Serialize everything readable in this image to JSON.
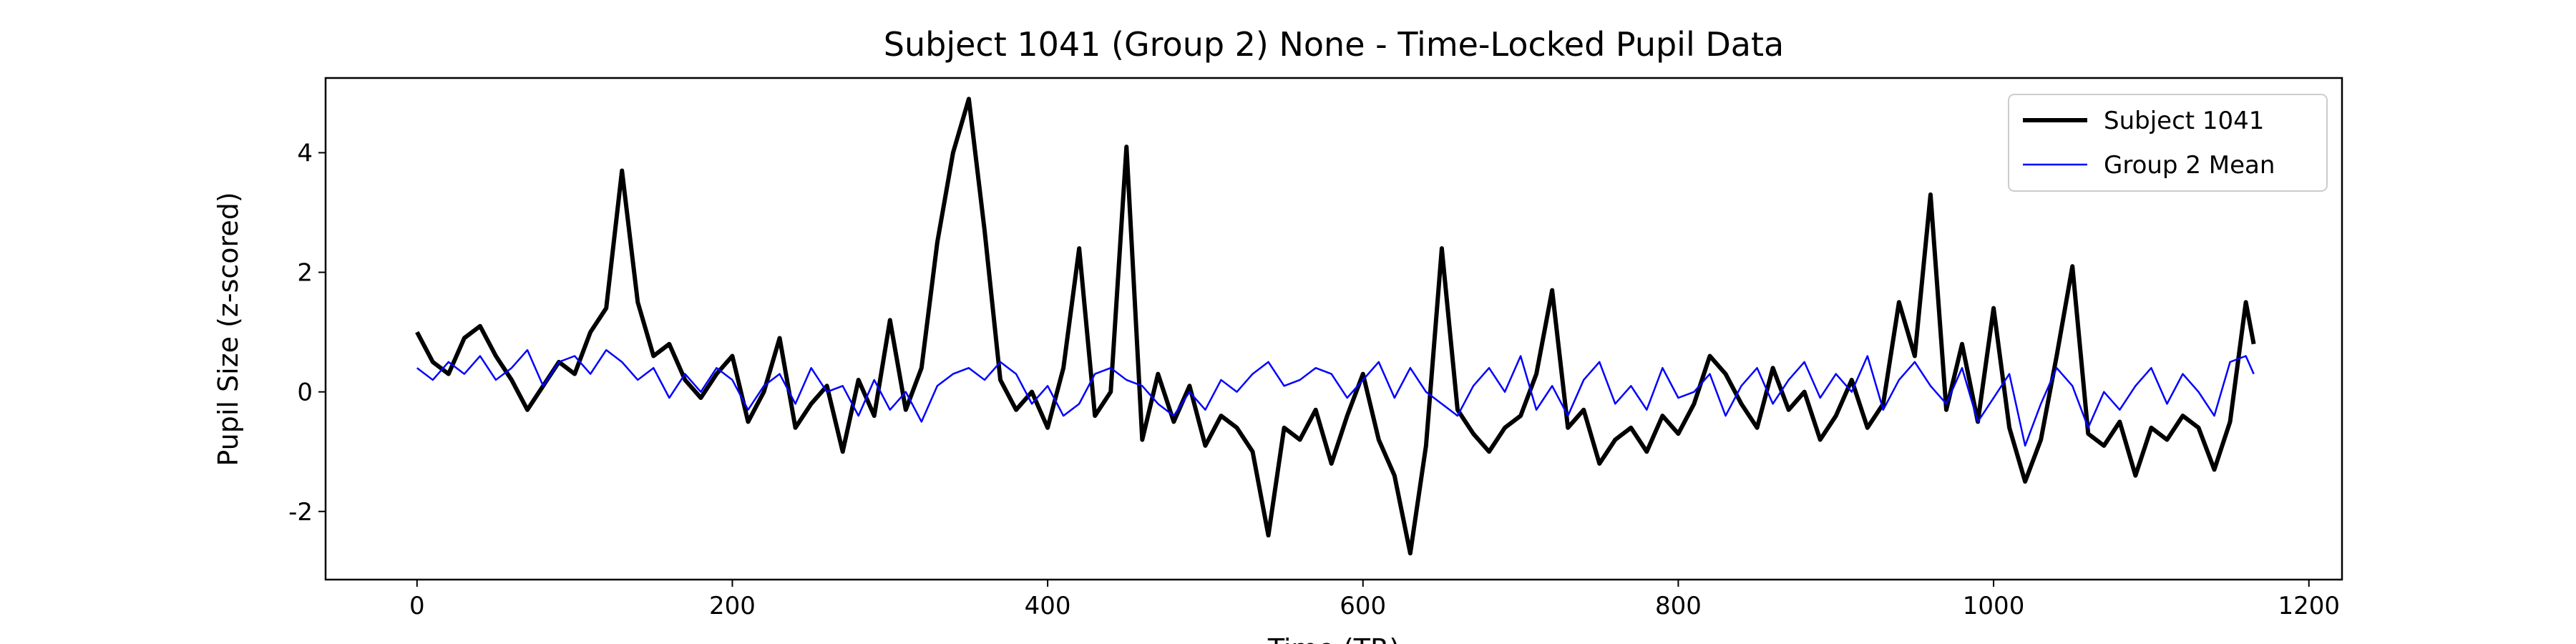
{
  "chart_data": {
    "type": "line",
    "title": "Subject 1041 (Group 2) None - Time-Locked Pupil Data",
    "x_label": "Time (TR)",
    "y_label": "Pupil Size (z-scored)",
    "x": [
      0,
      10,
      20,
      30,
      40,
      50,
      60,
      70,
      80,
      90,
      100,
      110,
      120,
      130,
      140,
      150,
      160,
      170,
      180,
      190,
      200,
      210,
      220,
      230,
      240,
      250,
      260,
      270,
      280,
      290,
      300,
      310,
      320,
      330,
      340,
      350,
      360,
      370,
      380,
      390,
      400,
      410,
      420,
      430,
      440,
      450,
      460,
      470,
      480,
      490,
      500,
      510,
      520,
      530,
      540,
      550,
      560,
      570,
      580,
      590,
      600,
      610,
      620,
      630,
      640,
      650,
      660,
      670,
      680,
      690,
      700,
      710,
      720,
      730,
      740,
      750,
      760,
      770,
      780,
      790,
      800,
      810,
      820,
      830,
      840,
      850,
      860,
      870,
      880,
      890,
      900,
      910,
      920,
      930,
      940,
      950,
      960,
      970,
      980,
      990,
      1000,
      1010,
      1020,
      1030,
      1040,
      1050,
      1060,
      1070,
      1080,
      1090,
      1100,
      1110,
      1120,
      1130,
      1140,
      1150,
      1160,
      1165
    ],
    "series": [
      {
        "name": "Subject 1041",
        "color": "#000000",
        "width": 6,
        "values": [
          1.0,
          0.5,
          0.3,
          0.9,
          1.1,
          0.6,
          0.2,
          -0.3,
          0.1,
          0.5,
          0.3,
          1.0,
          1.4,
          3.7,
          1.5,
          0.6,
          0.8,
          0.2,
          -0.1,
          0.3,
          0.6,
          -0.5,
          0.0,
          0.9,
          -0.6,
          -0.2,
          0.1,
          -1.0,
          0.2,
          -0.4,
          1.2,
          -0.3,
          0.4,
          2.5,
          4.0,
          4.9,
          2.7,
          0.2,
          -0.3,
          0.0,
          -0.6,
          0.4,
          2.4,
          -0.4,
          0.0,
          4.1,
          -0.8,
          0.3,
          -0.5,
          0.1,
          -0.9,
          -0.4,
          -0.6,
          -1.0,
          -2.4,
          -0.6,
          -0.8,
          -0.3,
          -1.2,
          -0.4,
          0.3,
          -0.8,
          -1.4,
          -2.7,
          -0.9,
          2.4,
          -0.3,
          -0.7,
          -1.0,
          -0.6,
          -0.4,
          0.3,
          1.7,
          -0.6,
          -0.3,
          -1.2,
          -0.8,
          -0.6,
          -1.0,
          -0.4,
          -0.7,
          -0.2,
          0.6,
          0.3,
          -0.2,
          -0.6,
          0.4,
          -0.3,
          0.0,
          -0.8,
          -0.4,
          0.2,
          -0.6,
          -0.2,
          1.5,
          0.6,
          3.3,
          -0.3,
          0.8,
          -0.5,
          1.4,
          -0.6,
          -1.5,
          -0.8,
          0.6,
          2.1,
          -0.7,
          -0.9,
          -0.5,
          -1.4,
          -0.6,
          -0.8,
          -0.4,
          -0.6,
          -1.3,
          -0.5,
          1.5,
          0.8
        ]
      },
      {
        "name": "Group 2 Mean",
        "color": "#0000ff",
        "width": 2.5,
        "values": [
          0.4,
          0.2,
          0.5,
          0.3,
          0.6,
          0.2,
          0.4,
          0.7,
          0.1,
          0.5,
          0.6,
          0.3,
          0.7,
          0.5,
          0.2,
          0.4,
          -0.1,
          0.3,
          0.0,
          0.4,
          0.2,
          -0.3,
          0.1,
          0.3,
          -0.2,
          0.4,
          0.0,
          0.1,
          -0.4,
          0.2,
          -0.3,
          0.0,
          -0.5,
          0.1,
          0.3,
          0.4,
          0.2,
          0.5,
          0.3,
          -0.2,
          0.1,
          -0.4,
          -0.2,
          0.3,
          0.4,
          0.2,
          0.1,
          -0.2,
          -0.4,
          0.0,
          -0.3,
          0.2,
          0.0,
          0.3,
          0.5,
          0.1,
          0.2,
          0.4,
          0.3,
          -0.1,
          0.2,
          0.5,
          -0.1,
          0.4,
          0.0,
          -0.2,
          -0.4,
          0.1,
          0.4,
          0.0,
          0.6,
          -0.3,
          0.1,
          -0.4,
          0.2,
          0.5,
          -0.2,
          0.1,
          -0.3,
          0.4,
          -0.1,
          0.0,
          0.3,
          -0.4,
          0.1,
          0.4,
          -0.2,
          0.2,
          0.5,
          -0.1,
          0.3,
          0.0,
          0.6,
          -0.3,
          0.2,
          0.5,
          0.1,
          -0.2,
          0.4,
          -0.5,
          -0.1,
          0.3,
          -0.9,
          -0.2,
          0.4,
          0.1,
          -0.6,
          0.0,
          -0.3,
          0.1,
          0.4,
          -0.2,
          0.3,
          0.0,
          -0.4,
          0.5,
          0.6,
          0.3
        ]
      }
    ],
    "xlim": [
      -58,
      1221
    ],
    "ylim": [
      -3.14,
      5.25
    ],
    "xticks": [
      0,
      200,
      400,
      600,
      800,
      1000,
      1200
    ],
    "yticks": [
      -2,
      0,
      2,
      4
    ],
    "legend": "upper right"
  }
}
